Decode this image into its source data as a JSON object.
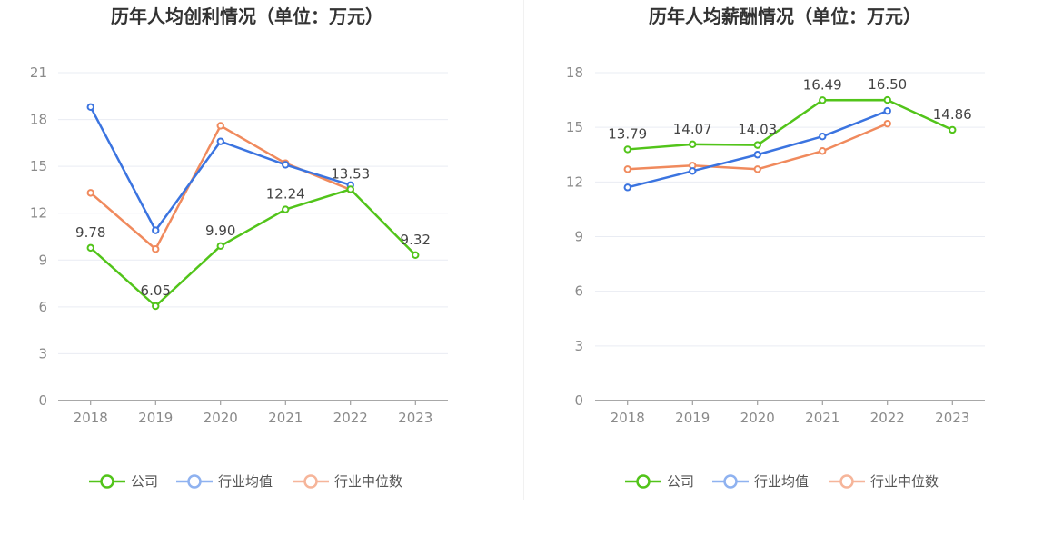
{
  "charts": [
    {
      "title": "历年人均创利情况（单位：万元）",
      "chart_data": {
        "type": "line",
        "categories": [
          "2018",
          "2019",
          "2020",
          "2021",
          "2022",
          "2023"
        ],
        "ylim": [
          0,
          21
        ],
        "yticks": [
          0,
          3,
          6,
          9,
          12,
          15,
          18,
          21
        ],
        "grid": true,
        "legend_position": "bottom",
        "series": [
          {
            "name": "公司",
            "color": "#52c41a",
            "values": [
              9.78,
              6.05,
              9.9,
              12.24,
              13.53,
              9.32
            ],
            "labels": [
              "9.78",
              "6.05",
              "9.90",
              "12.24",
              "13.53",
              "9.32"
            ]
          },
          {
            "name": "行业均值",
            "color": "#3b74e0",
            "values": [
              18.8,
              10.9,
              16.6,
              15.1,
              13.8,
              null
            ]
          },
          {
            "name": "行业中位数",
            "color": "#f08a5d",
            "values": [
              13.3,
              9.7,
              17.6,
              15.2,
              13.5,
              null
            ]
          }
        ]
      }
    },
    {
      "title": "历年人均薪酬情况（单位：万元）",
      "chart_data": {
        "type": "line",
        "categories": [
          "2018",
          "2019",
          "2020",
          "2021",
          "2022",
          "2023"
        ],
        "ylim": [
          0,
          18
        ],
        "yticks": [
          0,
          3,
          6,
          9,
          12,
          15,
          18
        ],
        "grid": true,
        "legend_position": "bottom",
        "series": [
          {
            "name": "公司",
            "color": "#52c41a",
            "values": [
              13.79,
              14.07,
              14.03,
              16.49,
              16.5,
              14.86
            ],
            "labels": [
              "13.79",
              "14.07",
              "14.03",
              "16.49",
              "16.50",
              "14.86"
            ]
          },
          {
            "name": "行业均值",
            "color": "#3b74e0",
            "values": [
              11.7,
              12.6,
              13.5,
              14.5,
              15.9,
              null
            ]
          },
          {
            "name": "行业中位数",
            "color": "#f08a5d",
            "values": [
              12.7,
              12.9,
              12.7,
              13.7,
              15.2,
              null
            ]
          }
        ]
      }
    }
  ],
  "legend_colors": {
    "公司": "#52c41a",
    "行业均值": "#8fb2f0",
    "行业中位数": "#f6b59a"
  }
}
